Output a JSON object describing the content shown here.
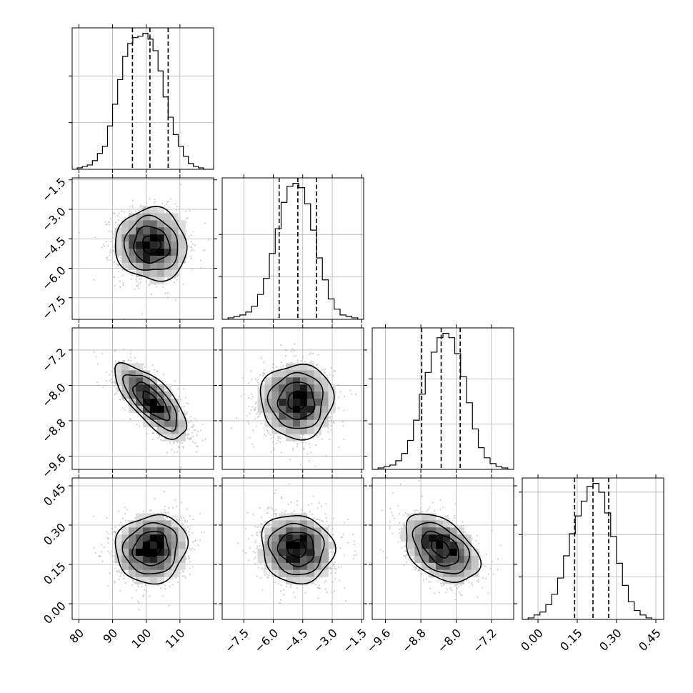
{
  "chart_data": {
    "type": "corner",
    "parameters": [
      {
        "id": "p0",
        "range": [
          78,
          120
        ],
        "ticks": [
          80,
          90,
          100,
          110
        ],
        "tick_labels": [
          "80",
          "90",
          "100",
          "110"
        ],
        "hist": [
          0,
          1,
          2,
          3,
          6,
          11,
          16,
          30,
          45,
          62,
          78,
          87,
          91,
          92,
          94,
          90,
          82,
          68,
          50,
          36,
          24,
          16,
          9,
          4,
          2,
          1,
          0,
          0
        ],
        "quantiles": [
          95.9,
          101.1,
          106.5
        ],
        "hist_ticks": [
          0.33,
          0.66
        ]
      },
      {
        "id": "p1",
        "range": [
          -8.6,
          -1.4
        ],
        "ticks": [
          -7.5,
          -6.0,
          -4.5,
          -3.0,
          -1.5
        ],
        "tick_labels": [
          "−7.5",
          "−6.0",
          "−4.5",
          "−3.0",
          "−1.5"
        ],
        "hist": [
          0,
          1,
          2,
          3,
          5,
          9,
          17,
          28,
          45,
          62,
          80,
          91,
          93,
          90,
          79,
          61,
          42,
          27,
          14,
          7,
          3,
          2,
          1,
          0
        ],
        "quantiles": [
          -5.7,
          -4.75,
          -3.8
        ],
        "hist_ticks": [
          0.3,
          0.6
        ]
      },
      {
        "id": "p2",
        "range": [
          -9.9,
          -6.7
        ],
        "ticks": [
          -9.6,
          -8.8,
          -8.0,
          -7.2
        ],
        "tick_labels": [
          "−9.6",
          "−8.8",
          "−8.0",
          "−7.2"
        ],
        "hist": [
          0,
          1,
          2,
          3,
          6,
          11,
          20,
          34,
          52,
          67,
          81,
          91,
          94,
          91,
          80,
          64,
          46,
          28,
          15,
          8,
          4,
          2,
          1,
          0
        ],
        "quantiles": [
          -8.78,
          -8.34,
          -7.91
        ],
        "hist_ticks": [
          0.32,
          0.64
        ]
      },
      {
        "id": "p3",
        "range": [
          -0.06,
          0.48
        ],
        "ticks": [
          0.0,
          0.15,
          0.3,
          0.45
        ],
        "tick_labels": [
          "0.00",
          "0.15",
          "0.30",
          "0.45"
        ],
        "hist": [
          0,
          1,
          3,
          5,
          10,
          17,
          28,
          43,
          58,
          70,
          80,
          90,
          92,
          86,
          72,
          56,
          38,
          23,
          12,
          6,
          3,
          1,
          0,
          0
        ],
        "quantiles": [
          0.14,
          0.21,
          0.27
        ],
        "hist_ticks": [
          0.3,
          0.6,
          0.9
        ]
      }
    ],
    "pairs": [
      {
        "row": 1,
        "col": 0,
        "center": [
          101.5,
          -4.8
        ],
        "sd": [
          5.3,
          0.92
        ],
        "rho": -0.05
      },
      {
        "row": 2,
        "col": 0,
        "center": [
          101.5,
          -8.35
        ],
        "sd": [
          5.3,
          0.42
        ],
        "rho": -0.72
      },
      {
        "row": 2,
        "col": 1,
        "center": [
          -4.8,
          -8.35
        ],
        "sd": [
          0.92,
          0.42
        ],
        "rho": 0.0
      },
      {
        "row": 3,
        "col": 0,
        "center": [
          101.5,
          0.21
        ],
        "sd": [
          5.3,
          0.065
        ],
        "rho": 0.08
      },
      {
        "row": 3,
        "col": 1,
        "center": [
          -4.8,
          0.21
        ],
        "sd": [
          0.92,
          0.065
        ],
        "rho": -0.08
      },
      {
        "row": 3,
        "col": 2,
        "center": [
          -8.35,
          0.21
        ],
        "sd": [
          0.42,
          0.065
        ],
        "rho": -0.42
      }
    ],
    "contour_levels_sigma": [
      0.5,
      1.0,
      1.5,
      2.0
    ],
    "grid": true,
    "axis_labels": []
  }
}
